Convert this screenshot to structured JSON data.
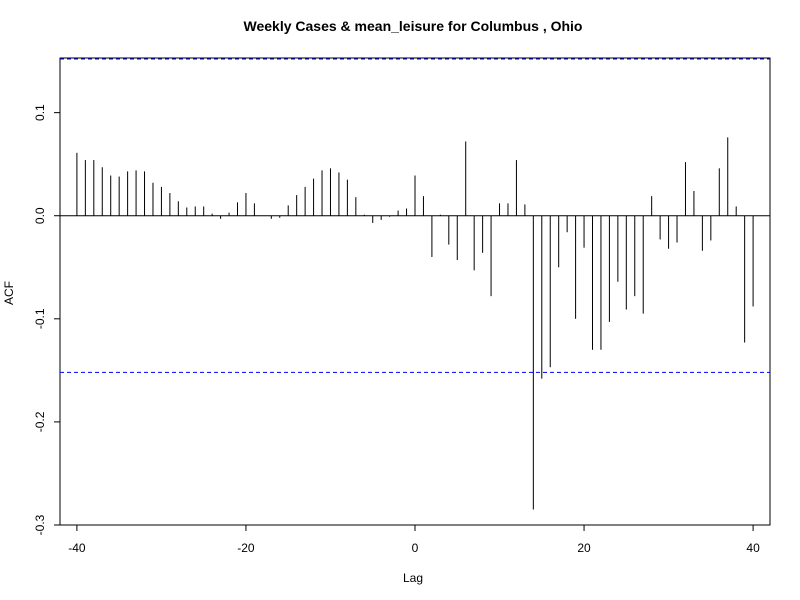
{
  "chart_data": {
    "type": "bar",
    "title": "Weekly Cases & mean_leisure for Columbus , Ohio",
    "xlabel": "Lag",
    "ylabel": "ACF",
    "xlim": [
      -42,
      42
    ],
    "ylim": [
      -0.3,
      0.153
    ],
    "xticks": [
      -40,
      -20,
      0,
      20,
      40
    ],
    "yticks": [
      -0.3,
      -0.2,
      -0.1,
      0.0,
      0.1
    ],
    "xtick_labels": [
      "-40",
      "-20",
      "0",
      "20",
      "40"
    ],
    "ytick_labels": [
      "-0.3",
      "-0.2",
      "-0.1",
      "0.0",
      "0.1"
    ],
    "confidence_bound": 0.152,
    "confidence_color": "#0000ff",
    "bar_color": "#000000",
    "grid": false,
    "lags": [
      -40,
      -39,
      -38,
      -37,
      -36,
      -35,
      -34,
      -33,
      -32,
      -31,
      -30,
      -29,
      -28,
      -27,
      -26,
      -25,
      -24,
      -23,
      -22,
      -21,
      -20,
      -19,
      -18,
      -17,
      -16,
      -15,
      -14,
      -13,
      -12,
      -11,
      -10,
      -9,
      -8,
      -7,
      -6,
      -5,
      -4,
      -3,
      -2,
      -1,
      0,
      1,
      2,
      3,
      4,
      5,
      6,
      7,
      8,
      9,
      10,
      11,
      12,
      13,
      14,
      15,
      16,
      17,
      18,
      19,
      20,
      21,
      22,
      23,
      24,
      25,
      26,
      27,
      28,
      29,
      30,
      31,
      32,
      33,
      34,
      35,
      36,
      37,
      38,
      39,
      40
    ],
    "values": [
      0.061,
      0.054,
      0.054,
      0.047,
      0.039,
      0.038,
      0.043,
      0.044,
      0.043,
      0.032,
      0.028,
      0.022,
      0.014,
      0.008,
      0.009,
      0.009,
      0.002,
      -0.003,
      0.003,
      0.013,
      0.022,
      0.012,
      0.0,
      -0.003,
      -0.002,
      0.01,
      0.02,
      0.028,
      0.036,
      0.044,
      0.046,
      0.042,
      0.035,
      0.018,
      0.001,
      -0.007,
      -0.004,
      -0.001,
      0.005,
      0.007,
      0.039,
      0.019,
      -0.04,
      0.001,
      -0.028,
      -0.043,
      0.072,
      -0.053,
      -0.036,
      -0.078,
      0.012,
      0.012,
      0.054,
      0.011,
      -0.285,
      -0.158,
      -0.147,
      -0.05,
      -0.016,
      -0.1,
      -0.031,
      -0.13,
      -0.13,
      -0.103,
      -0.064,
      -0.091,
      -0.078,
      -0.095,
      0.019,
      -0.023,
      -0.032,
      -0.026,
      0.052,
      0.024,
      -0.034,
      -0.024,
      0.046,
      0.076,
      0.009,
      -0.123,
      -0.088
    ]
  }
}
